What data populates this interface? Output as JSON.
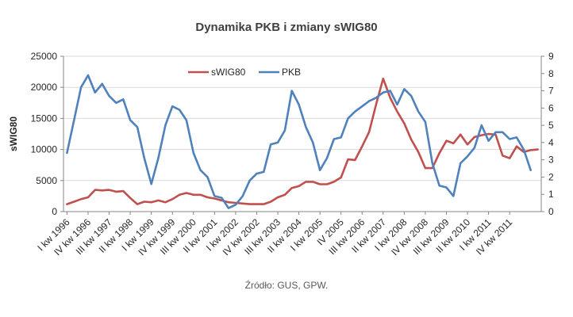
{
  "chart_data": {
    "type": "line",
    "title": "Dynamika PKB i zmiany sWIG80",
    "source": "Źródło: GUS, GPW.",
    "ylabel_left": "sWIG80",
    "ylabel_right": "",
    "xlabel": "",
    "y_left_ticks": [
      "0",
      "5000",
      "10000",
      "15000",
      "20000",
      "25000"
    ],
    "y_right_ticks": [
      "0",
      "1",
      "2",
      "3",
      "4",
      "5",
      "6",
      "7",
      "8",
      "9"
    ],
    "ylim_left": [
      0,
      25000
    ],
    "ylim_right": [
      0,
      9
    ],
    "x_tick_labels": [
      "I kw 1996",
      "IV kw 1996",
      "III kw 1997",
      "II kw 1998",
      "I kw 1999",
      "IV kw 1999",
      "III kw 2000",
      "II kw 2001",
      "I kw 2002",
      "IV kw 2002",
      "III kw 2003",
      "II kw 2004",
      "I kw 2005",
      "IV 2005",
      "III kw 2006",
      "II kw 2007",
      "I kw 2008",
      "IV kw 2008",
      "III kw 2009",
      "II kw 2010",
      "I kw 2011",
      "IV kw 2011"
    ],
    "grid": "horizontal",
    "legend_position": "top-center",
    "series": [
      {
        "name": "sWIG80",
        "axis": "left",
        "color": "#C0504D",
        "values": [
          1200,
          1600,
          2000,
          2300,
          3500,
          3400,
          3500,
          3200,
          3300,
          2200,
          1200,
          1600,
          1500,
          1800,
          1500,
          2000,
          2700,
          3000,
          2700,
          2700,
          2300,
          2100,
          1800,
          1500,
          1400,
          1300,
          1200,
          1200,
          1200,
          1600,
          2300,
          2700,
          3800,
          4100,
          4800,
          4800,
          4400,
          4400,
          4800,
          5500,
          8400,
          8300,
          10500,
          12800,
          17300,
          21400,
          18300,
          16100,
          14200,
          11600,
          9600,
          7000,
          7000,
          9400,
          11400,
          11000,
          12400,
          10800,
          12000,
          12300,
          12500,
          12400,
          9000,
          8600,
          10500,
          9600,
          9900,
          10000
        ]
      },
      {
        "name": "PKB",
        "axis": "right",
        "color": "#4F81BD",
        "values": [
          3.4,
          5.3,
          7.2,
          7.9,
          6.9,
          7.4,
          6.7,
          6.3,
          6.5,
          5.3,
          4.9,
          3.1,
          1.6,
          3.1,
          5.0,
          6.1,
          5.9,
          5.3,
          3.4,
          2.4,
          2.0,
          0.9,
          0.8,
          0.2,
          0.4,
          0.9,
          1.8,
          2.2,
          2.3,
          3.9,
          4.0,
          4.7,
          7.0,
          6.2,
          4.9,
          4.0,
          2.4,
          3.1,
          4.2,
          4.3,
          5.4,
          5.8,
          6.1,
          6.4,
          6.6,
          6.9,
          7.0,
          6.2,
          7.1,
          6.7,
          5.8,
          5.2,
          2.8,
          1.5,
          1.4,
          0.9,
          2.8,
          3.2,
          3.7,
          5.0,
          4.1,
          4.6,
          4.6,
          4.2,
          4.3,
          3.6,
          2.4
        ]
      }
    ]
  }
}
